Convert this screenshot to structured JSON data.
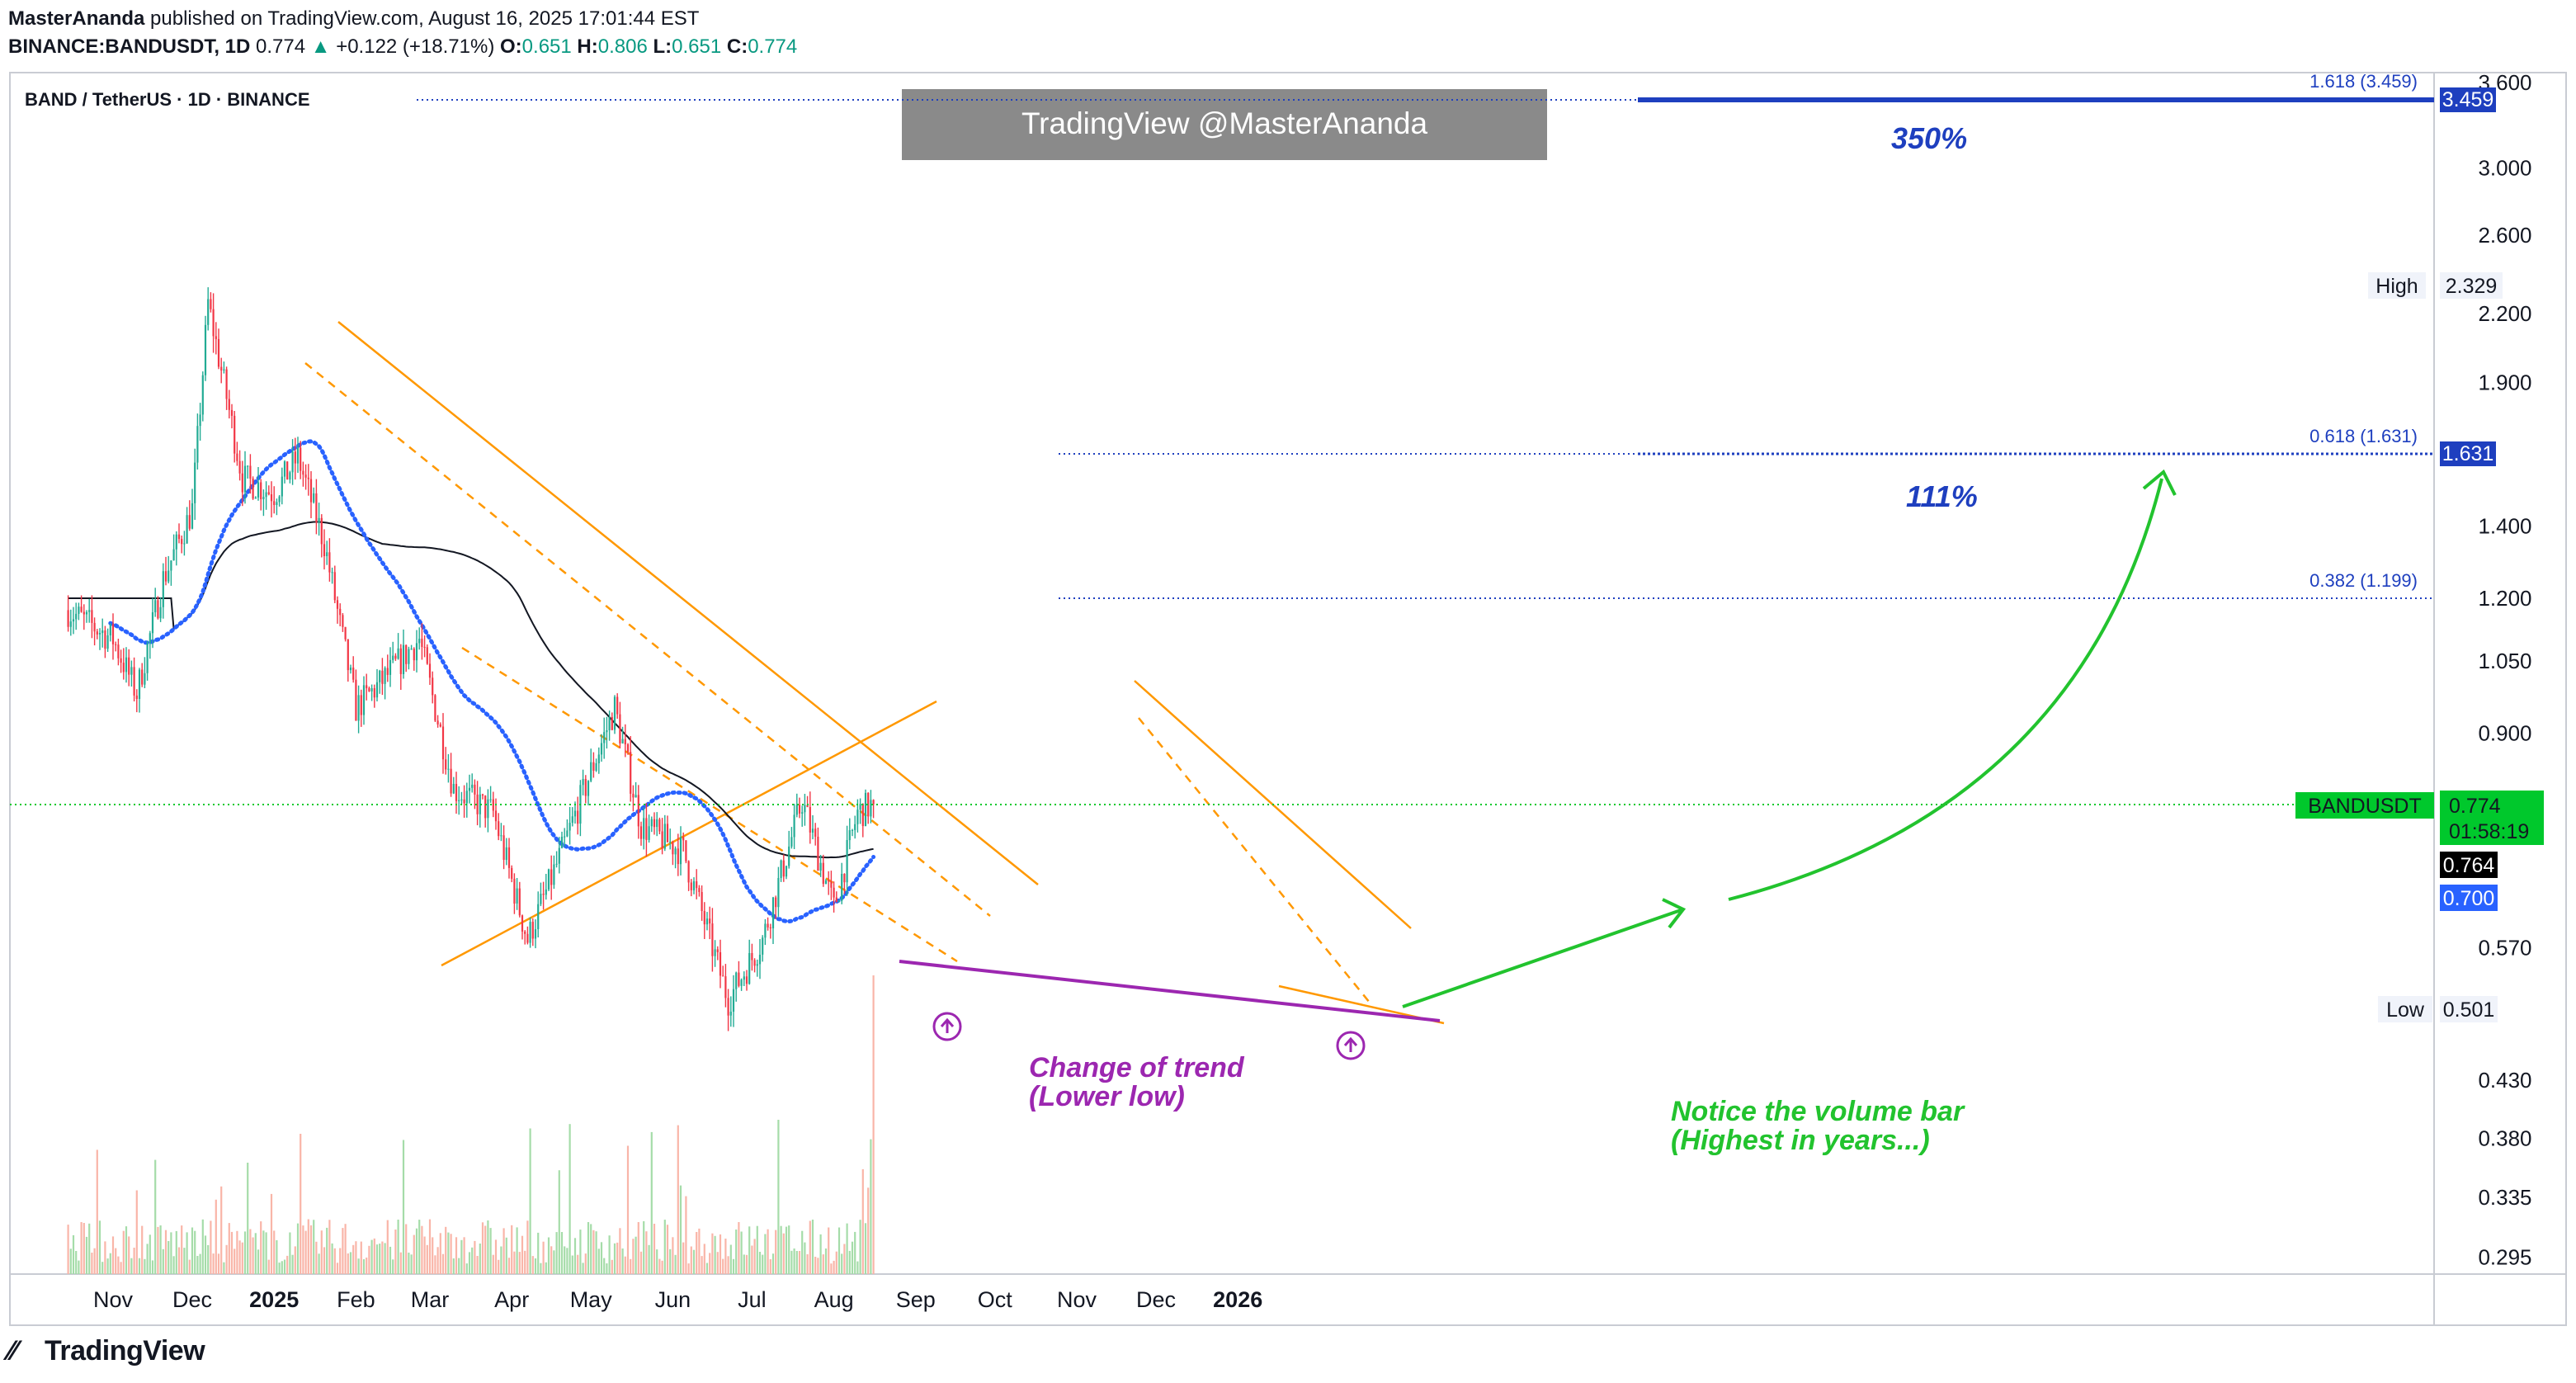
{
  "header": {
    "publisher": "MasterAnanda",
    "published_text": "published on TradingView.com, August 16, 2025 17:01:44 EST",
    "symbol_line": "BINANCE:BANDUSDT, 1D",
    "last": "0.774",
    "change_arrow": "▲",
    "change": "+0.122 (+18.71%)",
    "o_label": "O:",
    "o": "0.651",
    "h_label": "H:",
    "h": "0.806",
    "l_label": "L:",
    "l": "0.651",
    "c_label": "C:",
    "c": "0.774"
  },
  "pane_title": "BAND / TetherUS · 1D · BINANCE",
  "watermark": "TradingView @MasterAnanda",
  "footer_brand": "TradingView",
  "colors": {
    "up": "#22ab94",
    "down": "#f23645",
    "ema_blue": "#2962ff",
    "ma_black": "#131722",
    "channel": "#ff9800",
    "purple": "#9c27b0",
    "green_arrow": "#22c32e",
    "fib": "#1e3fbf",
    "current_green": "#00c82c"
  },
  "annotations": {
    "pct_350": "350%",
    "pct_111": "111%",
    "change_of_trend_1": "Change of trend",
    "change_of_trend_2": "(Lower low)",
    "volume_note_1": "Notice the volume bar",
    "volume_note_2": "(Highest in years...)"
  },
  "chart_data": {
    "type": "candlestick",
    "title": "BAND / TetherUS · 1D · BINANCE",
    "x_axis_labels": [
      "Nov",
      "Dec",
      "2025",
      "Feb",
      "Mar",
      "Apr",
      "May",
      "Jun",
      "Jul",
      "Aug",
      "Sep",
      "Oct",
      "Nov",
      "Dec",
      "2026"
    ],
    "y_scale": "log",
    "y_range": [
      0.28,
      3.7
    ],
    "y_tick_labels": [
      "3.600",
      "3.000",
      "2.600",
      "2.200",
      "1.900",
      "1.400",
      "1.200",
      "1.050",
      "0.900",
      "0.570",
      "0.430",
      "0.380",
      "0.335",
      "0.295"
    ],
    "fib_levels": [
      {
        "label": "1.618 (3.459)",
        "value": 3.459
      },
      {
        "label": "0.618 (1.631)",
        "value": 1.631
      },
      {
        "label": "0.382 (1.199)",
        "value": 1.199
      }
    ],
    "price_badges": [
      {
        "label": "High",
        "value": "2.329"
      },
      {
        "label": "Low",
        "value": "0.501"
      },
      {
        "label": "BANDUSDT",
        "value": "0.774",
        "countdown": "01:58:19"
      },
      {
        "label": "",
        "value": "0.764"
      },
      {
        "label": "",
        "value": "0.700"
      },
      {
        "label": "",
        "value": "3.459"
      },
      {
        "label": "",
        "value": "1.631"
      }
    ],
    "price_path_approx": [
      [
        "2024-10-15",
        1.17
      ],
      [
        "2024-11-01",
        1.1
      ],
      [
        "2024-11-10",
        0.98
      ],
      [
        "2024-11-20",
        1.25
      ],
      [
        "2024-12-01",
        1.45
      ],
      [
        "2024-12-07",
        2.25
      ],
      [
        "2024-12-12",
        1.95
      ],
      [
        "2024-12-20",
        1.55
      ],
      [
        "2025-01-01",
        1.5
      ],
      [
        "2025-01-10",
        1.62
      ],
      [
        "2025-01-20",
        1.35
      ],
      [
        "2025-02-01",
        0.95
      ],
      [
        "2025-02-10",
        1.0
      ],
      [
        "2025-02-25",
        1.1
      ],
      [
        "2025-03-10",
        0.8
      ],
      [
        "2025-03-25",
        0.76
      ],
      [
        "2025-04-07",
        0.58
      ],
      [
        "2025-04-20",
        0.7
      ],
      [
        "2025-05-01",
        0.83
      ],
      [
        "2025-05-10",
        0.95
      ],
      [
        "2025-05-20",
        0.74
      ],
      [
        "2025-06-05",
        0.7
      ],
      [
        "2025-06-22",
        0.51
      ],
      [
        "2025-07-05",
        0.58
      ],
      [
        "2025-07-20",
        0.78
      ],
      [
        "2025-08-01",
        0.62
      ],
      [
        "2025-08-10",
        0.76
      ],
      [
        "2025-08-16",
        0.774
      ]
    ]
  }
}
